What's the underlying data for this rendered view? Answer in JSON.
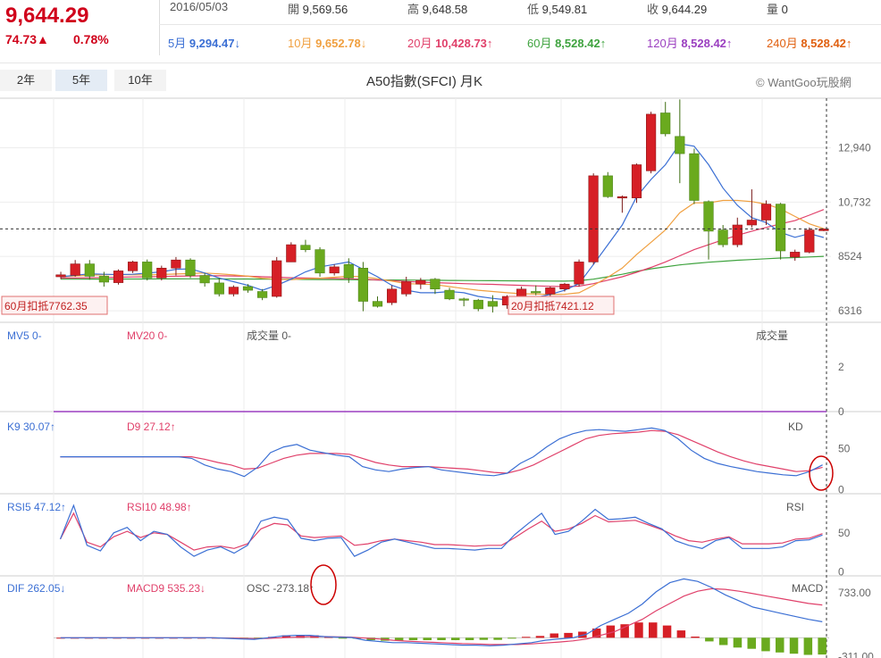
{
  "quote": {
    "price": "9,644.29",
    "change": "74.73▲",
    "change_pct": "0.78%",
    "date": "2016/05/03",
    "open_label": "開",
    "open": "9,569.56",
    "high_label": "高",
    "high": "9,648.58",
    "low_label": "低",
    "low": "9,549.81",
    "close_label": "收",
    "close": "9,644.29",
    "volume_label": "量",
    "volume": "0"
  },
  "moving_averages": [
    {
      "label": "5月",
      "value": "9,294.47",
      "arrow": "↓",
      "color": "#3b6fd4"
    },
    {
      "label": "10月",
      "value": "9,652.78",
      "arrow": "↓",
      "color": "#f0a040"
    },
    {
      "label": "20月",
      "value": "10,428.73",
      "arrow": "↑",
      "color": "#e0406a"
    },
    {
      "label": "60月",
      "value": "8,528.42",
      "arrow": "↑",
      "color": "#3fa33f"
    },
    {
      "label": "120月",
      "value": "8,528.42",
      "arrow": "↑",
      "color": "#9b3fc0"
    },
    {
      "label": "240月",
      "value": "8,528.42",
      "arrow": "↑",
      "color": "#e06010"
    }
  ],
  "range_buttons": [
    "2年",
    "5年",
    "10年"
  ],
  "active_range": "5年",
  "chart_title": "A50指數(SFCI) 月K",
  "credit": "© WantGoo玩股網",
  "colors": {
    "up": "#d61f26",
    "down": "#6aaa1e",
    "ma5": "#3b6fd4",
    "ma10": "#f0a040",
    "ma20": "#e0406a",
    "ma60": "#3fa33f",
    "k_line": "#3b6fd4",
    "d_line": "#e0406a",
    "macd_up": "#d61f26",
    "macd_down": "#6aaa1e",
    "annotation": "#cc0000"
  },
  "chart_data": [
    {
      "type": "candlestick",
      "title": "A50指數(SFCI) 月K",
      "y_ticks": [
        12940,
        10732,
        8524,
        6316
      ],
      "ylim": [
        5850,
        14950
      ],
      "last_close_marker": 9644.29,
      "markers": [
        {
          "label": "60月扣抵7762.35"
        },
        {
          "label": "20月扣抵7421.12"
        }
      ],
      "candles": [
        {
          "o": 7700,
          "h": 7900,
          "l": 7600,
          "c": 7780
        },
        {
          "o": 7760,
          "h": 8380,
          "l": 7700,
          "c": 8220
        },
        {
          "o": 8220,
          "h": 8380,
          "l": 7580,
          "c": 7720
        },
        {
          "o": 7720,
          "h": 7900,
          "l": 7300,
          "c": 7480
        },
        {
          "o": 7460,
          "h": 8000,
          "l": 7380,
          "c": 7940
        },
        {
          "o": 7940,
          "h": 8350,
          "l": 7850,
          "c": 8300
        },
        {
          "o": 8300,
          "h": 8400,
          "l": 7550,
          "c": 7650
        },
        {
          "o": 7650,
          "h": 8150,
          "l": 7550,
          "c": 8050
        },
        {
          "o": 8050,
          "h": 8500,
          "l": 7750,
          "c": 8380
        },
        {
          "o": 8380,
          "h": 8450,
          "l": 7650,
          "c": 7750
        },
        {
          "o": 7750,
          "h": 7850,
          "l": 7300,
          "c": 7450
        },
        {
          "o": 7450,
          "h": 7650,
          "l": 6900,
          "c": 7000
        },
        {
          "o": 7000,
          "h": 7350,
          "l": 6900,
          "c": 7280
        },
        {
          "o": 7300,
          "h": 7400,
          "l": 7050,
          "c": 7150
        },
        {
          "o": 7100,
          "h": 7200,
          "l": 6750,
          "c": 6850
        },
        {
          "o": 6900,
          "h": 8500,
          "l": 6850,
          "c": 8350
        },
        {
          "o": 8300,
          "h": 9100,
          "l": 8300,
          "c": 9000
        },
        {
          "o": 8980,
          "h": 9200,
          "l": 8700,
          "c": 8800
        },
        {
          "o": 8800,
          "h": 8900,
          "l": 7700,
          "c": 7850
        },
        {
          "o": 7850,
          "h": 8200,
          "l": 7750,
          "c": 8100
        },
        {
          "o": 8200,
          "h": 8450,
          "l": 7450,
          "c": 7650
        },
        {
          "o": 8050,
          "h": 8300,
          "l": 6300,
          "c": 6700
        },
        {
          "o": 6700,
          "h": 6900,
          "l": 6450,
          "c": 6500
        },
        {
          "o": 6650,
          "h": 7350,
          "l": 6550,
          "c": 7200
        },
        {
          "o": 7000,
          "h": 7700,
          "l": 6900,
          "c": 7500
        },
        {
          "o": 7400,
          "h": 7650,
          "l": 7200,
          "c": 7550
        },
        {
          "o": 7600,
          "h": 7650,
          "l": 7000,
          "c": 7200
        },
        {
          "o": 7150,
          "h": 7250,
          "l": 6750,
          "c": 6800
        },
        {
          "o": 6800,
          "h": 6850,
          "l": 6500,
          "c": 6750
        },
        {
          "o": 6750,
          "h": 6800,
          "l": 6300,
          "c": 6400
        },
        {
          "o": 6700,
          "h": 6950,
          "l": 6250,
          "c": 6500
        },
        {
          "o": 6550,
          "h": 6950,
          "l": 6400,
          "c": 6900
        },
        {
          "o": 6600,
          "h": 7300,
          "l": 6500,
          "c": 7200
        },
        {
          "o": 7100,
          "h": 7350,
          "l": 6950,
          "c": 7050
        },
        {
          "o": 7000,
          "h": 7300,
          "l": 6900,
          "c": 7250
        },
        {
          "o": 7200,
          "h": 7450,
          "l": 7100,
          "c": 7400
        },
        {
          "o": 7400,
          "h": 8400,
          "l": 7300,
          "c": 8300
        },
        {
          "o": 8300,
          "h": 11900,
          "l": 8200,
          "c": 11800
        },
        {
          "o": 11800,
          "h": 11950,
          "l": 10900,
          "c": 10950
        },
        {
          "o": 10900,
          "h": 11000,
          "l": 10300,
          "c": 10950
        },
        {
          "o": 10900,
          "h": 12300,
          "l": 10700,
          "c": 12250
        },
        {
          "o": 12000,
          "h": 14400,
          "l": 11900,
          "c": 14300
        },
        {
          "o": 14350,
          "h": 14800,
          "l": 13400,
          "c": 13500
        },
        {
          "o": 13400,
          "h": 14900,
          "l": 11500,
          "c": 12700
        },
        {
          "o": 12700,
          "h": 12900,
          "l": 10650,
          "c": 10800
        },
        {
          "o": 10750,
          "h": 10800,
          "l": 8400,
          "c": 9550
        },
        {
          "o": 9600,
          "h": 9800,
          "l": 8900,
          "c": 9000
        },
        {
          "o": 9000,
          "h": 10100,
          "l": 8900,
          "c": 9800
        },
        {
          "o": 9800,
          "h": 11250,
          "l": 9700,
          "c": 10000
        },
        {
          "o": 10000,
          "h": 10800,
          "l": 9800,
          "c": 10650
        },
        {
          "o": 10650,
          "h": 10700,
          "l": 8400,
          "c": 8750
        },
        {
          "o": 8500,
          "h": 8800,
          "l": 8350,
          "c": 8700
        },
        {
          "o": 8700,
          "h": 9700,
          "l": 8650,
          "c": 9600
        },
        {
          "o": 9569.56,
          "h": 9648.58,
          "l": 9549.81,
          "c": 9644.29
        }
      ],
      "ma5": [
        7700,
        7760,
        7820,
        7800,
        7790,
        7800,
        7850,
        7900,
        8000,
        8020,
        7850,
        7650,
        7500,
        7350,
        7150,
        7350,
        7600,
        7900,
        8100,
        8200,
        8300,
        8000,
        7700,
        7350,
        7150,
        7050,
        7050,
        7100,
        7050,
        6900,
        6820,
        6760,
        6780,
        6860,
        6980,
        7150,
        7420,
        8200,
        9000,
        9800,
        10950,
        11650,
        12250,
        13100,
        13000,
        12250,
        11300,
        10600,
        10100,
        9900,
        9500,
        9300,
        9450,
        9294.47
      ],
      "ma10": [
        7700,
        7730,
        7760,
        7780,
        7790,
        7780,
        7780,
        7790,
        7810,
        7830,
        7850,
        7820,
        7780,
        7720,
        7640,
        7600,
        7580,
        7620,
        7640,
        7680,
        7720,
        7700,
        7620,
        7520,
        7420,
        7400,
        7380,
        7300,
        7220,
        7150,
        7100,
        7050,
        7010,
        7000,
        6980,
        6990,
        7050,
        7350,
        7680,
        8050,
        8600,
        9100,
        9600,
        10300,
        10700,
        10700,
        10800,
        10800,
        10750,
        10650,
        10450,
        10150,
        9850,
        9652.78
      ],
      "ma20": [
        7650,
        7650,
        7660,
        7670,
        7680,
        7690,
        7700,
        7710,
        7720,
        7730,
        7740,
        7740,
        7730,
        7720,
        7700,
        7680,
        7660,
        7650,
        7640,
        7630,
        7620,
        7600,
        7570,
        7540,
        7510,
        7480,
        7460,
        7440,
        7420,
        7400,
        7390,
        7370,
        7350,
        7330,
        7310,
        7300,
        7320,
        7420,
        7560,
        7700,
        7880,
        8080,
        8300,
        8550,
        8800,
        9000,
        9200,
        9380,
        9550,
        9700,
        9850,
        9980,
        10200,
        10428.73
      ],
      "ma60": [
        7600,
        7602,
        7604,
        7606,
        7608,
        7610,
        7610,
        7612,
        7612,
        7614,
        7614,
        7612,
        7610,
        7608,
        7604,
        7600,
        7596,
        7592,
        7588,
        7584,
        7580,
        7576,
        7572,
        7568,
        7564,
        7560,
        7556,
        7552,
        7548,
        7544,
        7540,
        7536,
        7532,
        7528,
        7524,
        7520,
        7540,
        7600,
        7700,
        7800,
        7920,
        8020,
        8100,
        8180,
        8240,
        8290,
        8330,
        8370,
        8400,
        8430,
        8460,
        8480,
        8505,
        8528.42
      ]
    },
    {
      "type": "bar",
      "title": "成交量",
      "series": [
        {
          "name": "MV5",
          "values": [
            0
          ]
        },
        {
          "name": "MV20",
          "values": [
            0
          ]
        },
        {
          "name": "成交量",
          "values": [
            0
          ]
        }
      ],
      "y_ticks": [
        2,
        0
      ],
      "ylim": [
        0,
        4
      ]
    },
    {
      "type": "line",
      "title": "KD",
      "legend": [
        {
          "label": "K9",
          "value": "30.07",
          "arrow": "↑"
        },
        {
          "label": "D9",
          "value": "27.12",
          "arrow": "↑"
        }
      ],
      "y_ticks": [
        50,
        0
      ],
      "ylim": [
        -5,
        95
      ],
      "series": [
        {
          "name": "K9",
          "values": [
            40,
            40,
            40,
            40,
            40,
            40,
            40,
            40,
            40,
            40,
            38,
            30,
            25,
            22,
            16,
            27,
            45,
            52,
            55,
            48,
            45,
            42,
            40,
            28,
            24,
            22,
            25,
            27,
            28,
            24,
            22,
            20,
            18,
            17,
            20,
            32,
            40,
            52,
            62,
            68,
            72,
            73,
            72,
            71,
            73,
            75,
            72,
            62,
            48,
            38,
            32,
            28,
            25,
            22,
            20,
            18,
            17,
            22,
            30.07
          ]
        },
        {
          "name": "D9",
          "values": [
            40,
            40,
            40,
            40,
            40,
            40,
            40,
            40,
            40,
            40,
            40,
            37,
            33,
            30,
            25,
            26,
            32,
            38,
            42,
            44,
            44,
            44,
            43,
            38,
            33,
            30,
            28,
            28,
            28,
            27,
            26,
            25,
            23,
            21,
            20,
            24,
            30,
            38,
            46,
            54,
            62,
            66,
            68,
            69,
            70,
            72,
            71,
            67,
            60,
            53,
            46,
            40,
            35,
            31,
            28,
            25,
            22,
            23,
            27.12
          ]
        }
      ]
    },
    {
      "type": "line",
      "title": "RSI",
      "legend": [
        {
          "label": "RSI5",
          "value": "47.12",
          "arrow": "↑"
        },
        {
          "label": "RSI10",
          "value": "48.98",
          "arrow": "↑"
        }
      ],
      "y_ticks": [
        50,
        0
      ],
      "ylim": [
        -5,
        100
      ],
      "series": [
        {
          "name": "RSI5",
          "values": [
            42,
            85,
            34,
            27,
            50,
            57,
            40,
            52,
            48,
            32,
            20,
            28,
            32,
            24,
            34,
            65,
            70,
            67,
            43,
            40,
            43,
            44,
            20,
            28,
            38,
            42,
            38,
            34,
            30,
            30,
            29,
            28,
            30,
            30,
            48,
            62,
            75,
            48,
            52,
            65,
            80,
            67,
            68,
            70,
            62,
            55,
            40,
            34,
            30,
            40,
            44,
            30,
            30,
            30,
            32,
            40,
            41,
            47.12
          ]
        },
        {
          "name": "RSI10",
          "values": [
            42,
            75,
            38,
            32,
            45,
            52,
            44,
            50,
            48,
            38,
            28,
            32,
            33,
            30,
            36,
            55,
            62,
            60,
            46,
            44,
            45,
            46,
            34,
            36,
            40,
            42,
            40,
            38,
            35,
            35,
            34,
            33,
            34,
            34,
            44,
            55,
            65,
            52,
            55,
            62,
            72,
            64,
            65,
            66,
            60,
            54,
            46,
            40,
            38,
            42,
            45,
            36,
            36,
            36,
            37,
            42,
            43,
            48.98
          ]
        }
      ]
    },
    {
      "type": "bar",
      "title": "MACD",
      "legend": [
        {
          "label": "DIF",
          "value": "262.05",
          "arrow": "↓"
        },
        {
          "label": "MACD9",
          "value": "535.23",
          "arrow": "↓"
        },
        {
          "label": "OSC",
          "value": "-273.18",
          "arrow": "↑"
        }
      ],
      "y_ticks": [
        "733.00",
        "-311.00"
      ],
      "ylim": [
        -330,
        1010
      ],
      "series": [
        {
          "name": "DIF",
          "values": [
            0,
            0,
            0,
            0,
            0,
            0,
            0,
            0,
            0,
            0,
            0,
            0,
            -10,
            -20,
            -25,
            0,
            30,
            40,
            40,
            20,
            10,
            5,
            -40,
            -60,
            -80,
            -80,
            -90,
            -100,
            -110,
            -120,
            -120,
            -130,
            -120,
            -100,
            -80,
            -40,
            -20,
            0,
            60,
            200,
            300,
            400,
            550,
            750,
            900,
            960,
            920,
            820,
            700,
            600,
            500,
            450,
            400,
            350,
            300,
            262.05
          ]
        },
        {
          "name": "MACD9",
          "values": [
            0,
            0,
            0,
            0,
            0,
            0,
            0,
            0,
            0,
            0,
            0,
            0,
            -5,
            -10,
            -15,
            -10,
            0,
            10,
            20,
            20,
            15,
            10,
            -5,
            -20,
            -40,
            -55,
            -65,
            -75,
            -85,
            -95,
            -100,
            -110,
            -110,
            -110,
            -100,
            -85,
            -70,
            -50,
            -20,
            40,
            100,
            200,
            300,
            440,
            560,
            680,
            760,
            800,
            790,
            760,
            720,
            680,
            640,
            600,
            560,
            535.23
          ]
        },
        {
          "name": "OSC",
          "values": [
            0,
            0,
            0,
            0,
            0,
            0,
            0,
            0,
            0,
            0,
            0,
            0,
            -10,
            -15,
            -15,
            15,
            40,
            45,
            40,
            20,
            -5,
            -10,
            -40,
            -50,
            -50,
            -40,
            -40,
            -40,
            -40,
            -40,
            -35,
            -35,
            -15,
            15,
            30,
            70,
            80,
            100,
            150,
            200,
            220,
            250,
            250,
            200,
            120,
            20,
            -60,
            -120,
            -160,
            -180,
            -220,
            -240,
            -260,
            -280,
            -273.18
          ]
        }
      ]
    }
  ]
}
